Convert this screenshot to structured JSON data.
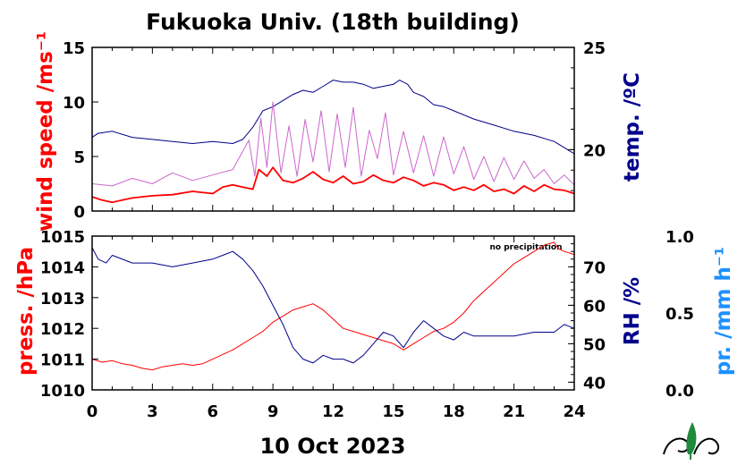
{
  "title": "Fukuoka Univ. (18th building)",
  "date_label": "10 Oct 2023",
  "colors": {
    "red": "#ff0000",
    "navy": "#00008b",
    "violet": "#cc66cc",
    "blue": "#1e90ff",
    "black": "#000000"
  },
  "chart_data": [
    {
      "type": "line",
      "panel": "top",
      "x_ticks": [
        "0",
        "3",
        "6",
        "9",
        "12",
        "15",
        "18",
        "21",
        "24"
      ],
      "xlim": [
        0,
        24
      ],
      "left_axis": {
        "label": "wind speed /ms⁻¹",
        "ylim": [
          0,
          15
        ],
        "ticks": [
          "0",
          "5",
          "10",
          "15"
        ]
      },
      "right_axis": {
        "label": "temp. /ºC",
        "ylim": [
          17,
          25
        ],
        "ticks": [
          "20",
          "25"
        ]
      },
      "series": [
        {
          "role": "temperature",
          "axis": "right",
          "color": "navy",
          "x": [
            0,
            0.3,
            1,
            2,
            3,
            4,
            5,
            6,
            7,
            7.5,
            8,
            8.5,
            9,
            10,
            10.5,
            11,
            11.5,
            12,
            12.5,
            13,
            13.5,
            14,
            14.5,
            15,
            15.3,
            15.7,
            16,
            16.5,
            17,
            17.5,
            18,
            19,
            20,
            21,
            22,
            23,
            23.5,
            24
          ],
          "y": [
            20.6,
            20.8,
            20.9,
            20.6,
            20.5,
            20.4,
            20.3,
            20.4,
            20.3,
            20.5,
            21.1,
            21.9,
            22.1,
            22.7,
            22.9,
            22.8,
            23.1,
            23.4,
            23.3,
            23.3,
            23.2,
            23.0,
            23.1,
            23.2,
            23.4,
            23.2,
            22.8,
            22.6,
            22.2,
            22.1,
            21.9,
            21.5,
            21.2,
            20.9,
            20.7,
            20.4,
            20.1,
            19.8
          ]
        },
        {
          "role": "wind speed max",
          "axis": "left",
          "color": "violet",
          "x": [
            0,
            1,
            2,
            3,
            4,
            5,
            6,
            7,
            7.8,
            8.1,
            8.4,
            8.7,
            9,
            9.4,
            9.8,
            10.2,
            10.6,
            11,
            11.4,
            11.8,
            12.2,
            12.6,
            13,
            13.4,
            13.8,
            14.2,
            14.6,
            15,
            15.5,
            16,
            16.5,
            17,
            17.5,
            18,
            18.5,
            19,
            19.5,
            20,
            20.5,
            21,
            21.5,
            22,
            22.5,
            23,
            23.5,
            24
          ],
          "y": [
            2.5,
            2.3,
            3.0,
            2.5,
            3.5,
            2.8,
            3.3,
            3.8,
            6.5,
            3.2,
            8.5,
            4.0,
            10.0,
            3.5,
            7.8,
            3.2,
            8.4,
            4.5,
            9.2,
            3.6,
            8.9,
            4.0,
            9.5,
            3.2,
            7.4,
            4.8,
            9.0,
            3.3,
            7.3,
            3.5,
            6.9,
            3.2,
            6.8,
            3.4,
            5.9,
            2.9,
            5.0,
            2.7,
            4.9,
            2.9,
            4.6,
            3.0,
            3.8,
            2.5,
            3.3,
            2.4
          ]
        },
        {
          "role": "wind speed mean",
          "axis": "left",
          "color": "red",
          "x": [
            0,
            0.5,
            1,
            1.5,
            2,
            3,
            4,
            5,
            6,
            6.5,
            7,
            7.5,
            8,
            8.3,
            8.7,
            9,
            9.5,
            10,
            10.5,
            11,
            11.5,
            12,
            12.5,
            13,
            13.5,
            14,
            14.5,
            15,
            15.5,
            16,
            16.5,
            17,
            17.5,
            18,
            18.5,
            19,
            19.5,
            20,
            20.5,
            21,
            21.5,
            22,
            22.5,
            23,
            23.5,
            24
          ],
          "y": [
            1.3,
            1.0,
            0.8,
            1.0,
            1.2,
            1.4,
            1.5,
            1.8,
            1.6,
            2.2,
            2.4,
            2.2,
            2.0,
            3.8,
            3.2,
            4.0,
            2.8,
            2.6,
            3.0,
            3.6,
            2.9,
            2.6,
            3.2,
            2.5,
            2.7,
            3.3,
            2.8,
            2.6,
            3.1,
            2.8,
            2.3,
            2.6,
            2.4,
            1.9,
            2.2,
            1.9,
            2.4,
            1.8,
            2.0,
            1.6,
            2.3,
            1.8,
            2.4,
            2.0,
            1.9,
            1.6
          ]
        }
      ]
    },
    {
      "type": "line",
      "panel": "bottom",
      "x_ticks": [
        "0",
        "3",
        "6",
        "9",
        "12",
        "15",
        "18",
        "21",
        "24"
      ],
      "xlim": [
        0,
        24
      ],
      "xlabel": "10 Oct 2023",
      "left_axis": {
        "label": "press. /hPa",
        "ylim": [
          1010,
          1015
        ],
        "ticks": [
          "1010",
          "1011",
          "1012",
          "1013",
          "1014",
          "1015"
        ]
      },
      "right_axis": {
        "label": "RH /%",
        "ylim": [
          38,
          78
        ],
        "ticks": [
          "40",
          "50",
          "60",
          "70"
        ]
      },
      "far_right_axis": {
        "label": "pr. /mm h⁻¹",
        "ylim": [
          0,
          1
        ],
        "ticks": [
          "0.0",
          "0.5",
          "1.0"
        ]
      },
      "annotation": "no precipitation",
      "series": [
        {
          "role": "pressure",
          "axis": "left",
          "color": "red",
          "x": [
            0,
            0.5,
            1,
            1.5,
            2,
            2.5,
            3,
            3.5,
            4,
            4.5,
            5,
            5.5,
            6,
            6.5,
            7,
            7.5,
            8,
            8.5,
            9,
            9.5,
            10,
            10.5,
            11,
            11.5,
            12,
            12.5,
            13,
            13.5,
            14,
            14.5,
            15,
            15.5,
            16,
            16.5,
            17,
            17.5,
            18,
            18.5,
            19,
            19.5,
            20,
            20.5,
            21,
            21.5,
            22,
            22.5,
            23,
            23.2,
            23.5,
            24
          ],
          "y": [
            1011.0,
            1010.9,
            1010.95,
            1010.85,
            1010.8,
            1010.7,
            1010.65,
            1010.75,
            1010.8,
            1010.85,
            1010.8,
            1010.85,
            1011.0,
            1011.15,
            1011.3,
            1011.5,
            1011.7,
            1011.9,
            1012.2,
            1012.4,
            1012.6,
            1012.7,
            1012.8,
            1012.6,
            1012.3,
            1012.0,
            1011.9,
            1011.8,
            1011.7,
            1011.6,
            1011.5,
            1011.3,
            1011.5,
            1011.7,
            1011.9,
            1012.0,
            1012.2,
            1012.5,
            1012.9,
            1013.2,
            1013.5,
            1013.8,
            1014.1,
            1014.3,
            1014.5,
            1014.7,
            1014.8,
            1014.6,
            1014.5,
            1014.4
          ]
        },
        {
          "role": "relative humidity",
          "axis": "right",
          "color": "navy",
          "x": [
            0,
            0.3,
            0.7,
            1,
            2,
            3,
            4,
            5,
            6,
            6.5,
            7,
            7.5,
            8,
            8.5,
            9,
            9.5,
            10,
            10.5,
            11,
            11.5,
            12,
            12.5,
            13,
            13.5,
            14,
            14.5,
            15,
            15.5,
            16,
            16.5,
            17,
            17.5,
            18,
            18.5,
            19,
            20,
            21,
            22,
            23,
            23.5,
            24
          ],
          "y": [
            75,
            72,
            71,
            73,
            71,
            71,
            70,
            71,
            72,
            73,
            74,
            72,
            69,
            65,
            60,
            55,
            49,
            46,
            45,
            47,
            46,
            46,
            45,
            47,
            50,
            53,
            52,
            49,
            53,
            56,
            54,
            52,
            51,
            53,
            52,
            52,
            52,
            53,
            53,
            55,
            54
          ]
        },
        {
          "role": "precipitation",
          "axis": "far_right",
          "color": "blue",
          "x": [],
          "y": []
        }
      ]
    }
  ]
}
